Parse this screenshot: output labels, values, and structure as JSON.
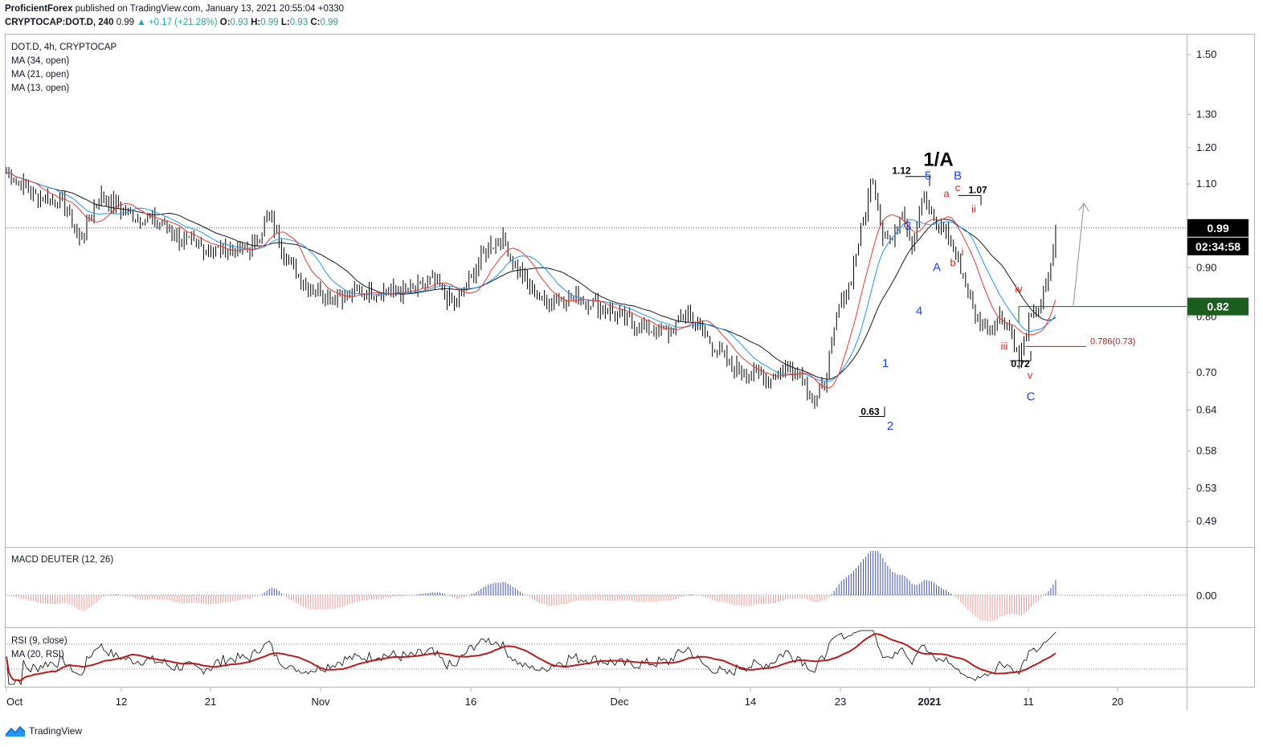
{
  "header": {
    "publisher": "ProficientForex",
    "published_text": "published on TradingView.com, January 13, 2021 20:55:04 +0330",
    "symbol": "CRYPTOCAP:DOT.D, 240",
    "last": "0.99",
    "change": "+0.17 (+21.28%)",
    "o_label": "O:",
    "o_val": "0.93",
    "h_label": "H:",
    "h_val": "0.99",
    "l_label": "L:",
    "l_val": "0.93",
    "c_label": "C:",
    "c_val": "0.99"
  },
  "legend": {
    "title": "DOT.D, 4h, CRYPTOCAP",
    "ma1": "MA (34, open)",
    "ma2": "MA (21, open)",
    "ma3": "MA (13, open)"
  },
  "macd_legend": "MACD DEUTER (12, 26)",
  "rsi_legend": "RSI (9, close)",
  "rsi_ma_legend": "MA (20, RSI)",
  "brand": "TradingView",
  "colors": {
    "candle": "#000000",
    "ma13": "#e53935",
    "ma21": "#2196f3",
    "ma34": "#131722",
    "macd_pos": "#3f51b5",
    "macd_neg": "#ef9a9a",
    "rsi": "#000000",
    "rsi_ma": "#b71c1c",
    "price_box": "#000000",
    "level_box": "#1b5e20",
    "wave_blue": "#1e40ff",
    "wave_red": "#e02020"
  },
  "chart_data": {
    "type": "bar",
    "subtype": "ohlc-with-moving-averages",
    "scale": "log",
    "x_tick_labels": [
      "Oct",
      "12",
      "21",
      "Nov",
      "16",
      "Dec",
      "14",
      "23",
      "2021",
      "11",
      "20"
    ],
    "y_tick_labels": [
      "1.50",
      "1.30",
      "1.20",
      "1.10",
      "0.90",
      "0.80",
      "0.70",
      "0.64",
      "0.58",
      "0.53",
      "0.49"
    ],
    "y_ticks": [
      1.5,
      1.3,
      1.2,
      1.1,
      0.9,
      0.8,
      0.7,
      0.64,
      0.58,
      0.53,
      0.49
    ],
    "ylim": [
      0.445,
      1.56
    ],
    "current_price": "0.99",
    "countdown": "02:34:58",
    "level_price": "0.82",
    "close_path": [
      {
        "i": 0,
        "p": 1.13
      },
      {
        "i": 12,
        "p": 1.07
      },
      {
        "i": 24,
        "p": 1.05
      },
      {
        "i": 30,
        "p": 0.96
      },
      {
        "i": 38,
        "p": 1.07
      },
      {
        "i": 52,
        "p": 1.02
      },
      {
        "i": 64,
        "p": 1.0
      },
      {
        "i": 72,
        "p": 0.96
      },
      {
        "i": 84,
        "p": 0.94
      },
      {
        "i": 100,
        "p": 0.94
      },
      {
        "i": 108,
        "p": 1.02
      },
      {
        "i": 114,
        "p": 0.93
      },
      {
        "i": 122,
        "p": 0.87
      },
      {
        "i": 134,
        "p": 0.84
      },
      {
        "i": 146,
        "p": 0.85
      },
      {
        "i": 166,
        "p": 0.85
      },
      {
        "i": 174,
        "p": 0.87
      },
      {
        "i": 178,
        "p": 0.86
      },
      {
        "i": 184,
        "p": 0.82
      },
      {
        "i": 190,
        "p": 0.87
      },
      {
        "i": 198,
        "p": 0.95
      },
      {
        "i": 204,
        "p": 0.96
      },
      {
        "i": 212,
        "p": 0.88
      },
      {
        "i": 220,
        "p": 0.83
      },
      {
        "i": 232,
        "p": 0.84
      },
      {
        "i": 240,
        "p": 0.83
      },
      {
        "i": 248,
        "p": 0.81
      },
      {
        "i": 262,
        "p": 0.78
      },
      {
        "i": 272,
        "p": 0.77
      },
      {
        "i": 280,
        "p": 0.81
      },
      {
        "i": 288,
        "p": 0.76
      },
      {
        "i": 298,
        "p": 0.71
      },
      {
        "i": 314,
        "p": 0.69
      },
      {
        "i": 320,
        "p": 0.71
      },
      {
        "i": 326,
        "p": 0.7
      },
      {
        "i": 332,
        "p": 0.65
      },
      {
        "i": 336,
        "p": 0.68
      },
      {
        "i": 342,
        "p": 0.82
      },
      {
        "i": 346,
        "p": 0.86
      },
      {
        "i": 352,
        "p": 1.01
      },
      {
        "i": 356,
        "p": 1.12
      },
      {
        "i": 360,
        "p": 0.98
      },
      {
        "i": 364,
        "p": 0.96
      },
      {
        "i": 368,
        "p": 1.04
      },
      {
        "i": 372,
        "p": 0.95
      },
      {
        "i": 376,
        "p": 1.07
      },
      {
        "i": 382,
        "p": 0.99
      },
      {
        "i": 386,
        "p": 0.99
      },
      {
        "i": 392,
        "p": 0.9
      },
      {
        "i": 398,
        "p": 0.8
      },
      {
        "i": 404,
        "p": 0.78
      },
      {
        "i": 408,
        "p": 0.8
      },
      {
        "i": 412,
        "p": 0.78
      },
      {
        "i": 416,
        "p": 0.72
      },
      {
        "i": 420,
        "p": 0.79
      },
      {
        "i": 424,
        "p": 0.82
      },
      {
        "i": 428,
        "p": 0.87
      },
      {
        "i": 431,
        "p": 0.99
      }
    ],
    "key_levels": [
      {
        "label": "1.12",
        "price": 1.12
      },
      {
        "label": "1.07",
        "price": 1.07
      },
      {
        "label": "0.63",
        "price": 0.63
      },
      {
        "label": "0.72",
        "price": 0.72
      },
      {
        "label": "0.786(0.73)",
        "price": 0.745
      }
    ],
    "wave_labels": [
      {
        "label": "1/A",
        "price": 1.18
      },
      {
        "label": "5",
        "price": 1.125
      },
      {
        "label": "B",
        "price": 1.125
      },
      {
        "label": "c",
        "price": 1.09
      },
      {
        "label": "a",
        "price": 1.07
      },
      {
        "label": "ii",
        "price": 1.035
      },
      {
        "label": "3",
        "price": 0.99
      },
      {
        "label": "i",
        "price": 0.93
      },
      {
        "label": "b",
        "price": 0.91
      },
      {
        "label": "A",
        "price": 0.9
      },
      {
        "label": "iv",
        "price": 0.855
      },
      {
        "label": "4",
        "price": 0.81
      },
      {
        "label": "iii",
        "price": 0.745
      },
      {
        "label": "1",
        "price": 0.715
      },
      {
        "label": "v",
        "price": 0.695
      },
      {
        "label": "C",
        "price": 0.66
      },
      {
        "label": "2",
        "price": 0.615
      }
    ],
    "macd": {
      "name": "MACD DEUTER (12, 26)",
      "y_tick_label": "0.00"
    },
    "rsi": {
      "name": "RSI (9, close)",
      "ma_name": "MA (20, RSI)",
      "levels": [
        70,
        30
      ]
    }
  }
}
